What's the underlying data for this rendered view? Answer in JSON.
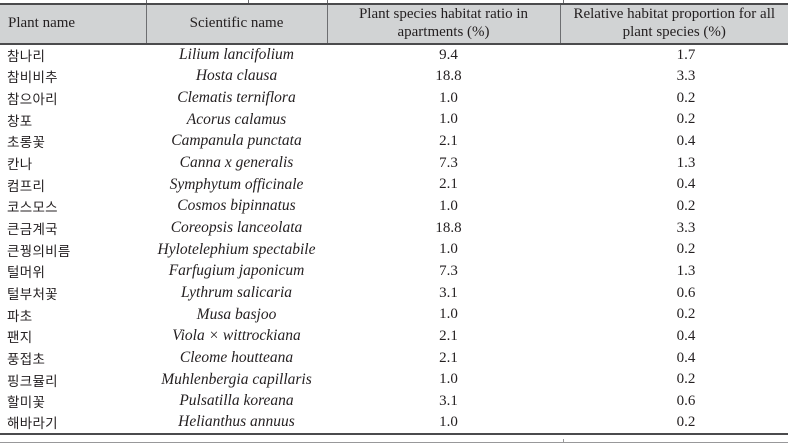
{
  "colors": {
    "header_bg": "#d1d3d4",
    "rule": "#4b4b4d",
    "divider": "#6d6e71",
    "text": "#231f20",
    "thin_line": "#98989a"
  },
  "table": {
    "columns": [
      {
        "key": "plant_name",
        "label": "Plant name"
      },
      {
        "key": "scientific_name",
        "label": "Scientific name"
      },
      {
        "key": "habitat_ratio",
        "label": "Plant species habitat ratio in apartments (%)"
      },
      {
        "key": "relative_proportion",
        "label": "Relative habitat proportion for all plant species (%)"
      }
    ],
    "rows": [
      {
        "plant_name": "참나리",
        "scientific_name": "Lilium lancifolium",
        "habitat_ratio": "9.4",
        "relative_proportion": "1.7"
      },
      {
        "plant_name": "참비비추",
        "scientific_name": "Hosta clausa",
        "habitat_ratio": "18.8",
        "relative_proportion": "3.3"
      },
      {
        "plant_name": "참으아리",
        "scientific_name": "Clematis terniflora",
        "habitat_ratio": "1.0",
        "relative_proportion": "0.2"
      },
      {
        "plant_name": "창포",
        "scientific_name": "Acorus calamus",
        "habitat_ratio": "1.0",
        "relative_proportion": "0.2"
      },
      {
        "plant_name": "초롱꽃",
        "scientific_name": "Campanula punctata",
        "habitat_ratio": "2.1",
        "relative_proportion": "0.4"
      },
      {
        "plant_name": "칸나",
        "scientific_name": "Canna x generalis",
        "habitat_ratio": "7.3",
        "relative_proportion": "1.3"
      },
      {
        "plant_name": "컴프리",
        "scientific_name": "Symphytum officinale",
        "habitat_ratio": "2.1",
        "relative_proportion": "0.4"
      },
      {
        "plant_name": "코스모스",
        "scientific_name": "Cosmos bipinnatus",
        "habitat_ratio": "1.0",
        "relative_proportion": "0.2"
      },
      {
        "plant_name": "큰금계국",
        "scientific_name": "Coreopsis lanceolata",
        "habitat_ratio": "18.8",
        "relative_proportion": "3.3"
      },
      {
        "plant_name": "큰꿩의비름",
        "scientific_name": "Hylotelephium spectabile",
        "habitat_ratio": "1.0",
        "relative_proportion": "0.2"
      },
      {
        "plant_name": "털머위",
        "scientific_name": "Farfugium japonicum",
        "habitat_ratio": "7.3",
        "relative_proportion": "1.3"
      },
      {
        "plant_name": "털부처꽃",
        "scientific_name": "Lythrum salicaria",
        "habitat_ratio": "3.1",
        "relative_proportion": "0.6"
      },
      {
        "plant_name": "파초",
        "scientific_name": "Musa basjoo",
        "habitat_ratio": "1.0",
        "relative_proportion": "0.2"
      },
      {
        "plant_name": "팬지",
        "scientific_name": "Viola × wittrockiana",
        "habitat_ratio": "2.1",
        "relative_proportion": "0.4"
      },
      {
        "plant_name": "풍접초",
        "scientific_name": "Cleome houtteana",
        "habitat_ratio": "2.1",
        "relative_proportion": "0.4"
      },
      {
        "plant_name": "핑크뮬리",
        "scientific_name": "Muhlenbergia capillaris",
        "habitat_ratio": "1.0",
        "relative_proportion": "0.2"
      },
      {
        "plant_name": "할미꽃",
        "scientific_name": "Pulsatilla koreana",
        "habitat_ratio": "3.1",
        "relative_proportion": "0.6"
      },
      {
        "plant_name": "해바라기",
        "scientific_name": "Helianthus annuus",
        "habitat_ratio": "1.0",
        "relative_proportion": "0.2"
      }
    ]
  }
}
